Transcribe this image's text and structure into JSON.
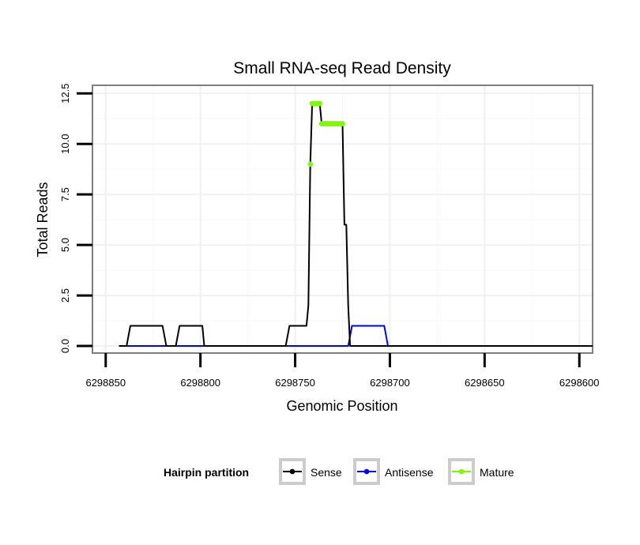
{
  "chart_data": {
    "type": "line",
    "title": "Small RNA-seq Read Density",
    "xlabel": "Genomic Position",
    "ylabel": "Total Reads",
    "x_reversed": true,
    "xlim": [
      6298857,
      6298593
    ],
    "ylim": [
      -0.35,
      12.9
    ],
    "x_ticks": [
      6298850,
      6298800,
      6298750,
      6298700,
      6298650,
      6298600
    ],
    "x_tick_labels": [
      "6298850",
      "6298800",
      "6298750",
      "6298700",
      "6298650",
      "6298600"
    ],
    "y_ticks": [
      0,
      2.5,
      5,
      7.5,
      10,
      12.5
    ],
    "y_tick_labels": [
      "0.0",
      "2.5",
      "5.0",
      "7.5",
      "10.0",
      "12.5"
    ],
    "grid": true,
    "legend": {
      "title": "Hairpin partition",
      "position": "bottom",
      "entries": [
        {
          "label": "Sense",
          "color": "#000000"
        },
        {
          "label": "Antisense",
          "color": "#0000ff"
        },
        {
          "label": "Mature",
          "color": "#7cfc00"
        }
      ]
    },
    "series": [
      {
        "name": "Sense",
        "color": "#000000",
        "points": [
          [
            6298843,
            0
          ],
          [
            6298839,
            0
          ],
          [
            6298837,
            1
          ],
          [
            6298820,
            1
          ],
          [
            6298818,
            0
          ],
          [
            6298813,
            0
          ],
          [
            6298811,
            1
          ],
          [
            6298801,
            1
          ],
          [
            6298799,
            1
          ],
          [
            6298798,
            0
          ],
          [
            6298755,
            0
          ],
          [
            6298753,
            1
          ],
          [
            6298744,
            1
          ],
          [
            6298743,
            2
          ],
          [
            6298742,
            9
          ],
          [
            6298741,
            12
          ],
          [
            6298738,
            12
          ],
          [
            6298737,
            12
          ],
          [
            6298736,
            11
          ],
          [
            6298728,
            11
          ],
          [
            6298725,
            11
          ],
          [
            6298724,
            6
          ],
          [
            6298723,
            6
          ],
          [
            6298722,
            2
          ],
          [
            6298721,
            0
          ],
          [
            6298593,
            0
          ]
        ]
      },
      {
        "name": "Antisense",
        "color": "#0000ff",
        "points": [
          [
            6298843,
            0
          ],
          [
            6298722,
            0
          ],
          [
            6298720,
            1
          ],
          [
            6298703,
            1
          ],
          [
            6298701,
            0
          ],
          [
            6298593,
            0
          ]
        ]
      },
      {
        "name": "Mature",
        "color": "#7cfc00",
        "points": [
          [
            6298742,
            9
          ],
          [
            6298741,
            12
          ],
          [
            6298740.5,
            12
          ],
          [
            6298740,
            12
          ],
          [
            6298739.5,
            12
          ],
          [
            6298739,
            12
          ],
          [
            6298738.5,
            12
          ],
          [
            6298738,
            12
          ],
          [
            6298737.5,
            12
          ],
          [
            6298737,
            12
          ],
          [
            6298736,
            11
          ],
          [
            6298735.5,
            11
          ],
          [
            6298735,
            11
          ],
          [
            6298734.5,
            11
          ],
          [
            6298734,
            11
          ],
          [
            6298733.5,
            11
          ],
          [
            6298733,
            11
          ],
          [
            6298732.5,
            11
          ],
          [
            6298732,
            11
          ],
          [
            6298731.5,
            11
          ],
          [
            6298731,
            11
          ],
          [
            6298730.5,
            11
          ],
          [
            6298730,
            11
          ],
          [
            6298729.5,
            11
          ],
          [
            6298729,
            11
          ],
          [
            6298728.5,
            11
          ],
          [
            6298728,
            11
          ],
          [
            6298727.5,
            11
          ],
          [
            6298727,
            11
          ],
          [
            6298726.5,
            11
          ],
          [
            6298726,
            11
          ],
          [
            6298725.5,
            11
          ],
          [
            6298725,
            11
          ]
        ]
      }
    ]
  }
}
